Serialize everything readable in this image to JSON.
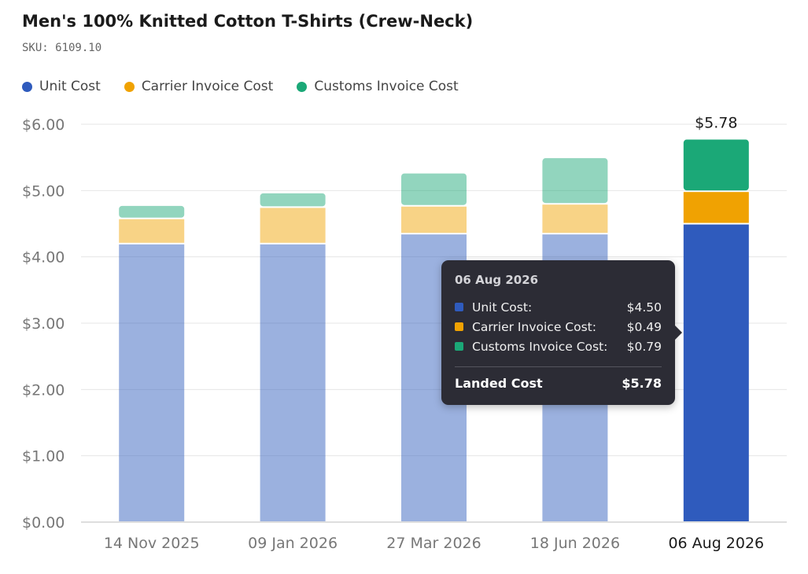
{
  "header": {
    "title": "Men's 100% Knitted Cotton T-Shirts (Crew-Neck)",
    "sku": "SKU: 6109.10"
  },
  "colors": {
    "unit_cost": "#2f5bbd",
    "carrier": "#f0a202",
    "customs": "#1ba877",
    "grid": "#e6e6e6",
    "axis_text": "#777777",
    "tooltip_bg": "#2c2c35"
  },
  "chart_data": {
    "type": "bar",
    "stacked": true,
    "categories": [
      "14 Nov 2025",
      "09 Jan 2026",
      "27 Mar 2026",
      "18 Jun 2026",
      "06 Aug 2026"
    ],
    "series": [
      {
        "name": "Unit Cost",
        "values": [
          4.2,
          4.2,
          4.35,
          4.35,
          4.5
        ]
      },
      {
        "name": "Carrier Invoice Cost",
        "values": [
          0.38,
          0.55,
          0.42,
          0.45,
          0.49
        ]
      },
      {
        "name": "Customs Invoice Cost",
        "values": [
          0.2,
          0.22,
          0.5,
          0.7,
          0.79
        ]
      }
    ],
    "yticks": [
      "$0.00",
      "$1.00",
      "$2.00",
      "$3.00",
      "$4.00",
      "$5.00",
      "$6.00"
    ],
    "ylim": [
      0,
      6
    ],
    "highlighted_index": 4,
    "highlight_label": "$5.78",
    "grid": true,
    "legend_position": "top-left"
  },
  "tooltip": {
    "date": "06 Aug 2026",
    "rows": [
      {
        "label": "Unit Cost:",
        "value": "$4.50"
      },
      {
        "label": "Carrier Invoice Cost:",
        "value": "$0.49"
      },
      {
        "label": "Customs Invoice Cost:",
        "value": "$0.79"
      }
    ],
    "total_label": "Landed Cost",
    "total_value": "$5.78"
  }
}
